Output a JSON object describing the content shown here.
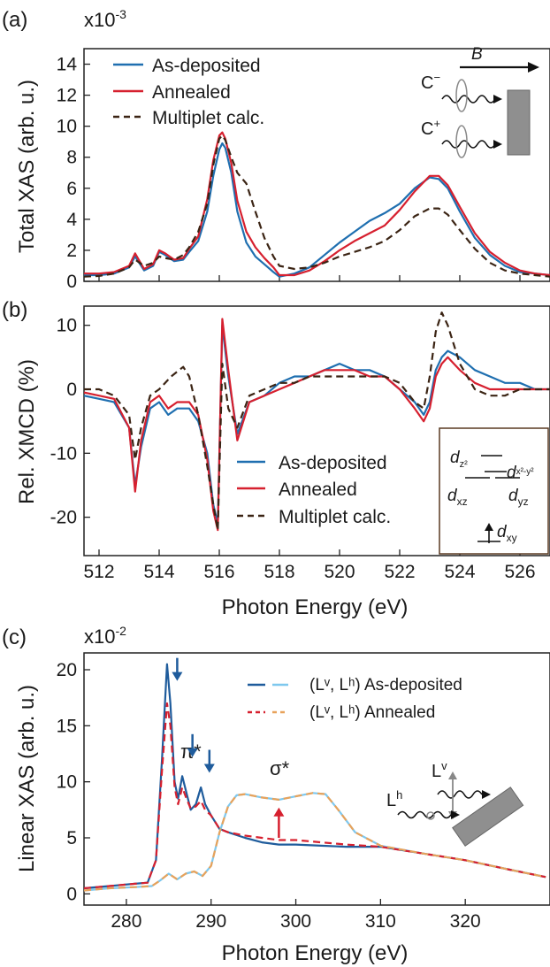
{
  "chart_data": [
    {
      "panel": "(a)",
      "type": "line",
      "multiplier": "x10",
      "multiplier_exp": "-3",
      "ylabel": "Total XAS (arb. u.)",
      "xlabel": "",
      "xlim": [
        511.5,
        527
      ],
      "ylim": [
        0,
        15
      ],
      "x_ticks": [
        512,
        514,
        516,
        518,
        520,
        522,
        524,
        526
      ],
      "y_ticks": [
        0,
        2,
        4,
        6,
        8,
        10,
        12,
        14
      ],
      "legend": "top-left",
      "series": [
        {
          "name": "As-deposited",
          "color": "#1f6fb0",
          "style": "solid",
          "x": [
            511.5,
            512,
            512.5,
            513,
            513.2,
            513.5,
            513.8,
            514,
            514.2,
            514.5,
            514.8,
            515,
            515.3,
            515.6,
            515.8,
            516,
            516.1,
            516.2,
            516.4,
            516.6,
            516.9,
            517.2,
            517.5,
            517.8,
            518,
            518.5,
            519,
            519.5,
            520,
            520.5,
            521,
            521.5,
            522,
            522.5,
            523,
            523.3,
            523.6,
            524,
            524.5,
            525,
            525.5,
            526,
            526.5,
            527
          ],
          "y": [
            0.4,
            0.4,
            0.5,
            0.9,
            1.6,
            0.7,
            1.0,
            1.9,
            1.7,
            1.3,
            1.4,
            1.9,
            2.6,
            4.5,
            6.8,
            8.5,
            8.9,
            8.6,
            7.0,
            4.5,
            2.5,
            1.6,
            1.1,
            0.6,
            0.3,
            0.5,
            0.9,
            1.7,
            2.5,
            3.2,
            3.9,
            4.4,
            5.0,
            6.0,
            6.7,
            6.6,
            6.0,
            4.5,
            2.8,
            1.7,
            1.0,
            0.6,
            0.5,
            0.4
          ]
        },
        {
          "name": "Annealed",
          "color": "#d6202f",
          "style": "solid",
          "x": [
            511.5,
            512,
            512.5,
            513,
            513.2,
            513.5,
            513.8,
            514,
            514.2,
            514.5,
            514.8,
            515,
            515.3,
            515.6,
            515.8,
            516,
            516.1,
            516.2,
            516.4,
            516.6,
            516.9,
            517.2,
            517.5,
            517.8,
            518,
            518.5,
            519,
            519.5,
            520,
            520.5,
            521,
            521.5,
            522,
            522.5,
            523,
            523.3,
            523.6,
            524,
            524.5,
            525,
            525.5,
            526,
            526.5,
            527
          ],
          "y": [
            0.5,
            0.5,
            0.6,
            1.0,
            1.8,
            0.8,
            1.1,
            2.0,
            1.8,
            1.4,
            1.5,
            2.1,
            2.9,
            5.3,
            7.8,
            9.4,
            9.6,
            9.2,
            7.6,
            5.2,
            3.2,
            2.2,
            1.5,
            0.9,
            0.4,
            0.4,
            0.7,
            1.3,
            2.0,
            2.6,
            3.1,
            3.6,
            4.6,
            5.8,
            6.8,
            6.8,
            6.2,
            4.8,
            3.1,
            1.9,
            1.2,
            0.7,
            0.5,
            0.4
          ]
        },
        {
          "name": "Multiplet calc.",
          "color": "#3b2414",
          "style": "dashed",
          "x": [
            511.5,
            512,
            512.5,
            513,
            513.2,
            513.5,
            513.8,
            514,
            514.2,
            514.5,
            514.8,
            515,
            515.3,
            515.6,
            515.8,
            516,
            516.1,
            516.2,
            516.4,
            516.6,
            516.9,
            517.2,
            517.5,
            517.8,
            518,
            518.5,
            519,
            519.5,
            520,
            520.5,
            521,
            521.5,
            522,
            522.5,
            523,
            523.3,
            523.6,
            524,
            524.5,
            525,
            525.5,
            526,
            526.5,
            527
          ],
          "y": [
            0.3,
            0.35,
            0.5,
            0.9,
            1.4,
            1.0,
            1.2,
            1.6,
            1.5,
            1.4,
            1.7,
            2.2,
            3.2,
            5.0,
            7.5,
            9.2,
            9.4,
            9.1,
            8.0,
            7.0,
            6.3,
            4.5,
            2.8,
            1.6,
            1.0,
            0.8,
            0.9,
            1.2,
            1.6,
            1.9,
            2.2,
            2.6,
            3.3,
            4.2,
            4.7,
            4.7,
            4.3,
            3.3,
            2.1,
            1.2,
            0.7,
            0.5,
            0.4,
            0.3
          ]
        }
      ]
    },
    {
      "panel": "(b)",
      "type": "line",
      "ylabel": "Rel. XMCD (%)",
      "xlabel": "Photon Energy (eV)",
      "xlim": [
        511.5,
        527
      ],
      "ylim": [
        -26,
        13
      ],
      "x_ticks": [
        512,
        514,
        516,
        518,
        520,
        522,
        524,
        526
      ],
      "y_ticks": [
        10,
        0,
        -10,
        -20
      ],
      "legend": "bottom-center",
      "series": [
        {
          "name": "As-deposited",
          "color": "#1f6fb0",
          "style": "solid",
          "x": [
            511.5,
            512,
            512.5,
            513,
            513.2,
            513.4,
            513.7,
            514,
            514.3,
            514.6,
            515,
            515.3,
            515.6,
            515.8,
            515.95,
            516.1,
            516.3,
            516.6,
            517,
            517.5,
            518,
            518.5,
            519,
            519.5,
            520,
            520.5,
            521,
            521.5,
            522,
            522.5,
            522.8,
            523,
            523.2,
            523.4,
            523.6,
            524,
            524.5,
            525,
            525.5,
            526,
            526.5,
            527
          ],
          "y": [
            -1,
            -1.5,
            -2,
            -6,
            -15,
            -9,
            -3,
            -2,
            -4,
            -3,
            -3,
            -5,
            -10,
            -18,
            -21,
            10,
            2,
            -7,
            -2,
            -1,
            1,
            2,
            2,
            3,
            4,
            3,
            3,
            2,
            0,
            -2,
            -4,
            -2,
            3,
            5,
            6,
            5,
            3,
            2,
            1,
            1,
            0,
            0
          ]
        },
        {
          "name": "Annealed",
          "color": "#d6202f",
          "style": "solid",
          "x": [
            511.5,
            512,
            512.5,
            513,
            513.2,
            513.4,
            513.7,
            514,
            514.3,
            514.6,
            515,
            515.3,
            515.6,
            515.8,
            515.95,
            516.1,
            516.3,
            516.6,
            517,
            517.5,
            518,
            518.5,
            519,
            519.5,
            520,
            520.5,
            521,
            521.5,
            522,
            522.5,
            522.8,
            523,
            523.2,
            523.4,
            523.6,
            524,
            524.5,
            525,
            525.5,
            526,
            526.5,
            527
          ],
          "y": [
            -0.5,
            -1,
            -1.5,
            -6,
            -16,
            -8,
            -2,
            -1,
            -3,
            -2,
            -2,
            -4,
            -11,
            -19,
            -22,
            11,
            3,
            -8,
            -2,
            -1,
            0,
            1,
            2,
            3,
            3,
            3,
            2,
            2,
            0,
            -3,
            -5,
            -3,
            2,
            4,
            5,
            3,
            1,
            0,
            0,
            0,
            0,
            0
          ]
        },
        {
          "name": "Multiplet calc.",
          "color": "#3b2414",
          "style": "dashed",
          "x": [
            511.5,
            512,
            512.5,
            513,
            513.2,
            513.4,
            513.7,
            514,
            514.4,
            514.8,
            515,
            515.3,
            515.6,
            515.8,
            515.95,
            516.1,
            516.3,
            516.6,
            517,
            517.5,
            518,
            518.5,
            519,
            519.5,
            520,
            520.5,
            521,
            521.5,
            522,
            522.5,
            522.8,
            523,
            523.2,
            523.4,
            523.6,
            524,
            524.5,
            525,
            525.5,
            526,
            526.5,
            527
          ],
          "y": [
            0,
            0,
            -1,
            -4,
            -11,
            -6,
            -1,
            0,
            2,
            3.5,
            2,
            -4,
            -12,
            -18,
            -22,
            4,
            -3,
            -6,
            -1,
            0,
            1,
            1,
            2,
            2,
            2,
            2,
            2,
            2,
            1,
            -2,
            -3,
            2,
            9,
            12,
            10,
            4,
            0,
            -1,
            -1,
            0,
            0,
            0
          ]
        }
      ],
      "inset_labels": {
        "dz2": "d",
        "dz2_sub": "z²",
        "dx2y2": "d",
        "dx2y2_sub": "x²-y²",
        "dxz": "d",
        "dxz_sub": "xz",
        "dyz": "d",
        "dyz_sub": "yz",
        "dxy": "d",
        "dxy_sub": "xy"
      }
    },
    {
      "panel": "(c)",
      "type": "line",
      "multiplier": "x10",
      "multiplier_exp": "-2",
      "ylabel": "Linear XAS (arb. u.)",
      "xlabel": "Photon Energy (eV)",
      "xlim": [
        275,
        330
      ],
      "ylim": [
        -1,
        21.5
      ],
      "x_ticks": [
        280,
        290,
        300,
        310,
        320
      ],
      "y_ticks": [
        0,
        5,
        10,
        15,
        20
      ],
      "legend": "top-right",
      "annotations": {
        "pi": "π*",
        "sigma": "σ*"
      },
      "series": [
        {
          "name": "(Lᵛ, Lʰ) As-deposited",
          "color": "#1f5c9c",
          "style": "solid",
          "role": "Lv",
          "x": [
            275,
            278,
            281,
            282.5,
            283.5,
            284.2,
            284.8,
            285.2,
            285.7,
            286.1,
            286.6,
            287.1,
            287.6,
            288.2,
            288.8,
            289.3,
            290,
            291,
            292,
            294,
            296,
            298,
            300,
            303,
            306,
            310,
            315,
            320,
            325,
            329.5
          ],
          "y": [
            0.5,
            0.7,
            0.9,
            1.0,
            3.0,
            12,
            20.5,
            17,
            10,
            8.5,
            10.5,
            9,
            7.5,
            8,
            9.5,
            8,
            7,
            5.8,
            5.5,
            5.0,
            4.6,
            4.4,
            4.4,
            4.3,
            4.2,
            4.2,
            3.6,
            3.0,
            2.2,
            1.5
          ]
        },
        {
          "name": "(Lᵛ, Lʰ) As-deposited",
          "color": "#7ec8ee",
          "style": "solid",
          "role": "Lh",
          "x": [
            275,
            278,
            281,
            283,
            284,
            285,
            286,
            287,
            288,
            289,
            290,
            291,
            292,
            293,
            294,
            296,
            298,
            300,
            302,
            303.5,
            305,
            307,
            310,
            315,
            320,
            325,
            329.5
          ],
          "y": [
            0.3,
            0.5,
            0.6,
            0.7,
            1.2,
            1.8,
            1.3,
            1.8,
            2.0,
            1.6,
            2.5,
            5.5,
            7.8,
            8.8,
            8.9,
            8.6,
            8.4,
            8.7,
            9.0,
            8.9,
            7.5,
            5.5,
            4.3,
            3.6,
            3.0,
            2.2,
            1.5
          ]
        },
        {
          "name": "(Lᵛ, Lʰ) Annealed",
          "color": "#d6202f",
          "style": "dashed",
          "role": "Lv",
          "x": [
            275,
            278,
            281,
            282.5,
            283.5,
            284.2,
            284.8,
            285.2,
            285.7,
            286.1,
            286.6,
            287.1,
            287.6,
            288.2,
            288.8,
            289.3,
            290,
            291,
            292,
            294,
            296,
            298,
            300,
            303,
            306,
            310,
            315,
            320,
            325,
            329.5
          ],
          "y": [
            0.5,
            0.7,
            0.9,
            1.0,
            3.0,
            11,
            17,
            15,
            9.5,
            8,
            9.5,
            8.5,
            7.6,
            7.8,
            8.3,
            7.5,
            7,
            5.8,
            5.5,
            5.2,
            5.0,
            4.8,
            4.8,
            4.6,
            4.4,
            4.2,
            3.6,
            3.0,
            2.2,
            1.5
          ]
        },
        {
          "name": "(Lᵛ, Lʰ) Annealed",
          "color": "#e8a25a",
          "style": "dashed",
          "role": "Lh",
          "x": [
            275,
            278,
            281,
            283,
            284,
            285,
            286,
            287,
            288,
            289,
            290,
            291,
            292,
            293,
            294,
            296,
            298,
            300,
            302,
            303.5,
            305,
            307,
            310,
            315,
            320,
            325,
            329.5
          ],
          "y": [
            0.3,
            0.5,
            0.6,
            0.7,
            1.2,
            1.8,
            1.3,
            1.8,
            2.0,
            1.6,
            2.5,
            5.5,
            7.8,
            8.8,
            8.9,
            8.6,
            8.4,
            8.7,
            9.0,
            8.9,
            7.5,
            5.5,
            4.3,
            3.6,
            3.0,
            2.2,
            1.5
          ]
        }
      ],
      "inset_labels": {
        "lv": "L",
        "lv_sup": "v",
        "lh": "L",
        "lh_sup": "h"
      }
    }
  ],
  "panel_a_inset": {
    "b_label": "B",
    "c_minus": "C",
    "c_minus_sup": "−",
    "c_plus": "C",
    "c_plus_sup": "+"
  },
  "colors": {
    "blue": "#1f6fb0",
    "red": "#d6202f",
    "brown": "#3b2414",
    "lightblue": "#7ec8ee",
    "orange": "#e8a25a",
    "grey": "#8a8a8a"
  }
}
